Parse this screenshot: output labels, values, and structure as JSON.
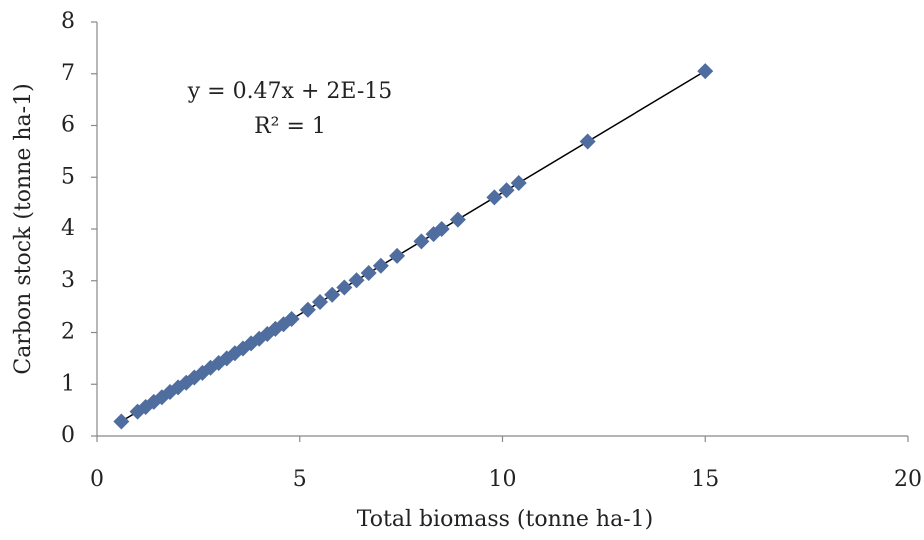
{
  "chart_data": {
    "type": "scatter",
    "x_label": "Total biomass (tonne ha-1)",
    "y_label": "Carbon stock (tonne ha-1)",
    "annotations": [
      "y = 0.47x + 2E-15",
      "R² = 1"
    ],
    "xlim": [
      0,
      20
    ],
    "xticks": [
      0,
      5,
      10,
      15,
      20
    ],
    "ylim": [
      0,
      8
    ],
    "yticks": [
      0,
      1,
      2,
      3,
      4,
      5,
      6,
      7,
      8
    ],
    "grid": false,
    "trendline": true,
    "series": [
      {
        "color": "#4f6d9e",
        "x": [
          0.6,
          1,
          1.2,
          1.4,
          1.6,
          1.8,
          2,
          2.2,
          2.4,
          2.6,
          2.8,
          3,
          3.2,
          3.4,
          3.6,
          3.8,
          4,
          4.2,
          4.4,
          4.6,
          4.8,
          5.2,
          5.5,
          5.8,
          6.1,
          6.4,
          6.7,
          7,
          7.4,
          8,
          8.3,
          8.5,
          8.9,
          9.8,
          10.1,
          10.4,
          12.1,
          15.0
        ],
        "values": [
          0.28,
          0.47,
          0.56,
          0.66,
          0.75,
          0.85,
          0.94,
          1.03,
          1.13,
          1.22,
          1.32,
          1.41,
          1.5,
          1.6,
          1.69,
          1.79,
          1.88,
          1.97,
          2.07,
          2.16,
          2.26,
          2.44,
          2.59,
          2.73,
          2.87,
          3.01,
          3.15,
          3.29,
          3.48,
          3.76,
          3.9,
          4.0,
          4.18,
          4.61,
          4.75,
          4.89,
          5.69,
          7.05
        ]
      }
    ]
  }
}
